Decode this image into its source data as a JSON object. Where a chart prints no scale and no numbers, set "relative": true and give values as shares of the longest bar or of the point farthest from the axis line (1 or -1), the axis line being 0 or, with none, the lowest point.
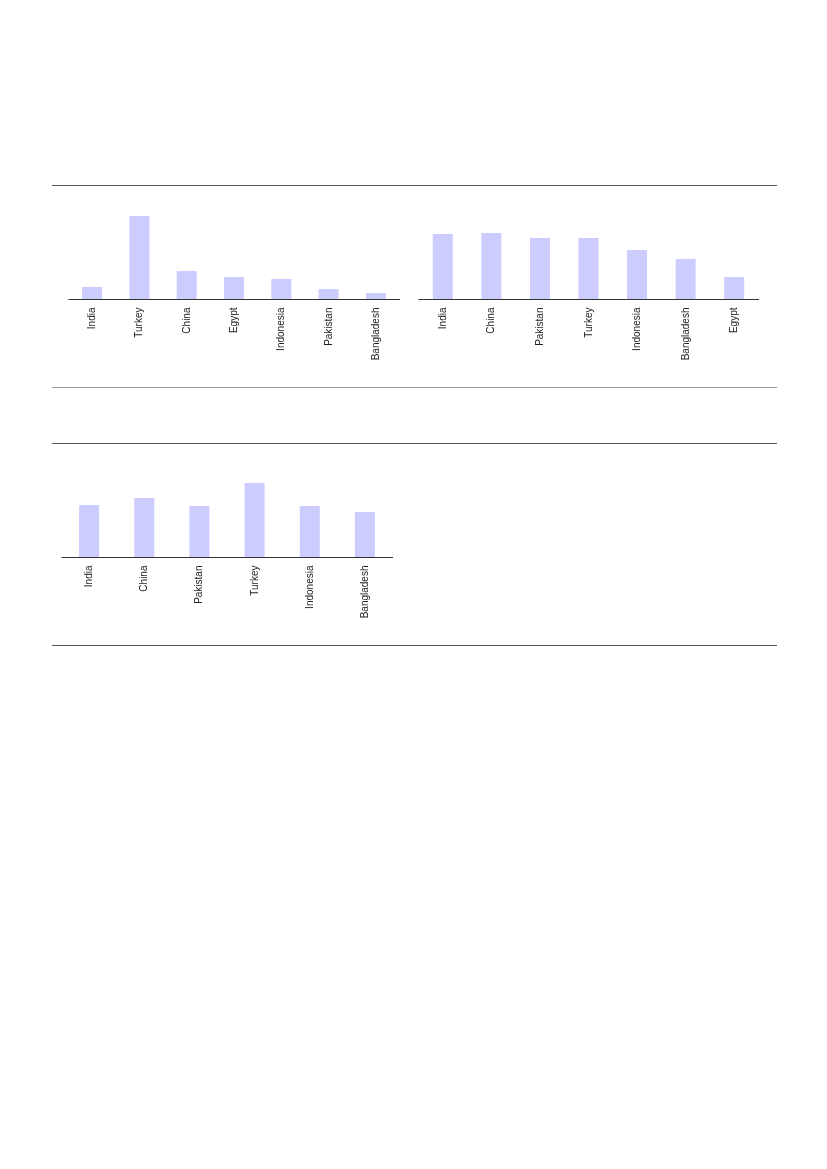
{
  "chart_data": [
    {
      "type": "bar",
      "relative": true,
      "color": "#ccccff",
      "categories": [
        "India",
        "Turkey",
        "China",
        "Egypt",
        "Indonesia",
        "Pakistan",
        "Bangladesh"
      ],
      "values": [
        0.145,
        1,
        0.337,
        0.265,
        0.241,
        0.12,
        0.072
      ]
    },
    {
      "type": "bar",
      "relative": true,
      "color": "#ccccff",
      "categories": [
        "India",
        "China",
        "Pakistan",
        "Turkey",
        "Indonesia",
        "Bangladesh",
        "Egypt"
      ],
      "values": [
        0.985,
        1,
        0.924,
        0.924,
        0.742,
        0.606,
        0.333
      ]
    },
    {
      "type": "bar",
      "relative": true,
      "color": "#ccccff",
      "categories": [
        "India",
        "China",
        "Pakistan",
        "Turkey",
        "Indonesia",
        "Bangladesh"
      ],
      "values": [
        0.703,
        0.797,
        0.689,
        1,
        0.689,
        0.608
      ]
    }
  ]
}
